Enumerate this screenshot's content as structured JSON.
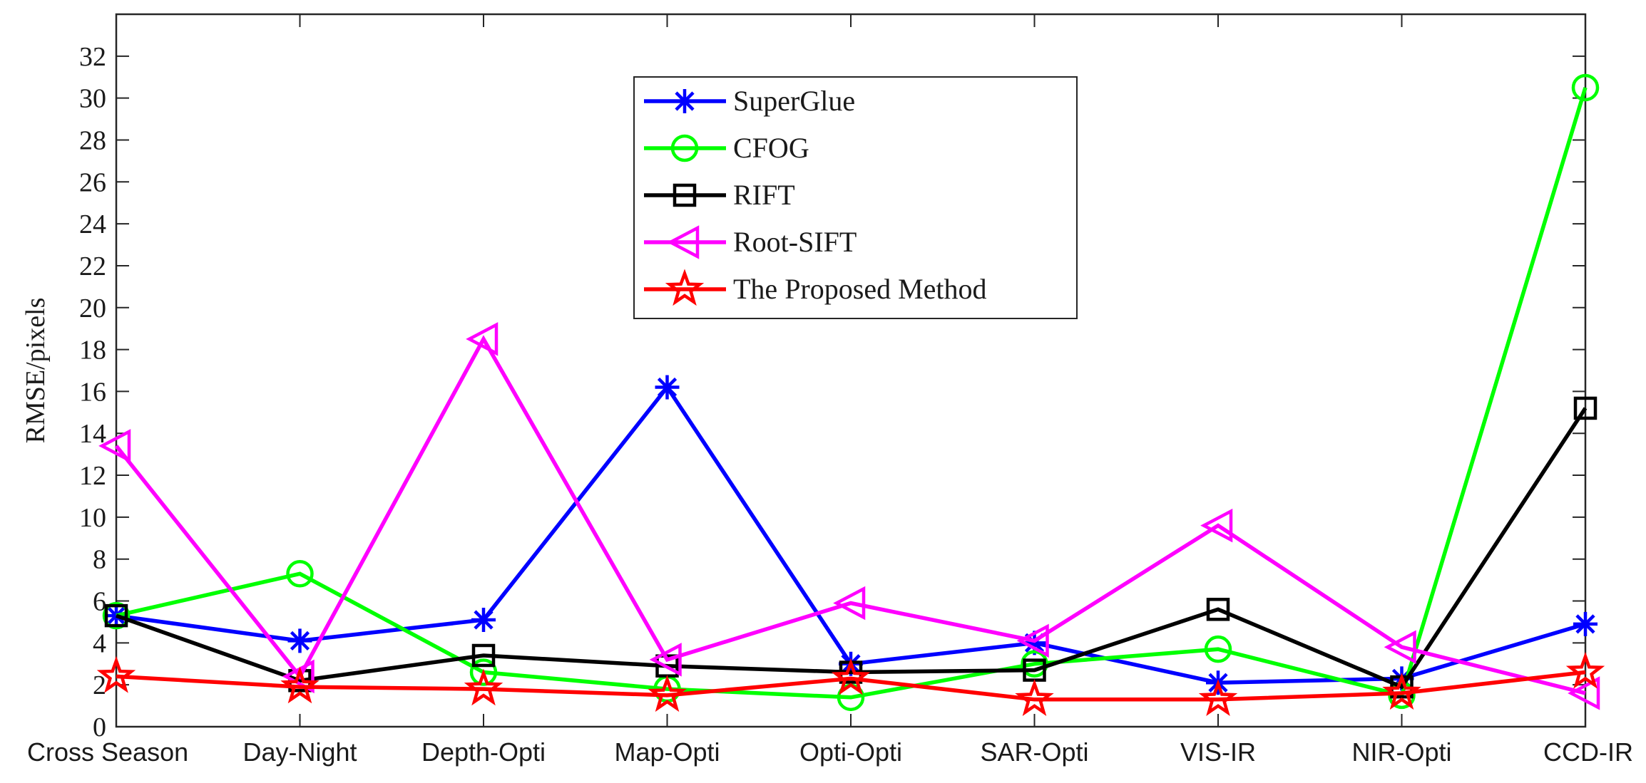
{
  "chart_data": {
    "type": "line",
    "title": "",
    "xlabel": "",
    "ylabel": "RMSE/pixels",
    "ylim": [
      0,
      34
    ],
    "yticks": [
      0,
      2,
      4,
      6,
      8,
      10,
      12,
      14,
      16,
      18,
      20,
      22,
      24,
      26,
      28,
      30,
      32
    ],
    "grid": false,
    "legend_position": "top-center",
    "categories": [
      "Cross Season",
      "Day-Night",
      "Depth-Opti",
      "Map-Opti",
      "Opti-Opti",
      "SAR-Opti",
      "VIS-IR",
      "NIR-Opti",
      "CCD-IR"
    ],
    "series": [
      {
        "name": "SuperGlue",
        "color": "#0000ff",
        "marker": "asterisk",
        "values": [
          5.3,
          4.1,
          5.1,
          16.2,
          3.0,
          4.0,
          2.1,
          2.3,
          4.9
        ]
      },
      {
        "name": "CFOG",
        "color": "#00ff00",
        "marker": "circle",
        "values": [
          5.3,
          7.3,
          2.6,
          1.8,
          1.4,
          3.0,
          3.7,
          1.5,
          30.5
        ]
      },
      {
        "name": "RIFT",
        "color": "#000000",
        "marker": "square",
        "values": [
          5.3,
          2.2,
          3.4,
          2.9,
          2.6,
          2.7,
          5.6,
          1.9,
          15.2
        ]
      },
      {
        "name": "Root-SIFT",
        "color": "#ff00ff",
        "marker": "triangle-left",
        "values": [
          13.4,
          2.4,
          18.5,
          3.2,
          5.9,
          4.1,
          9.6,
          3.8,
          1.6
        ]
      },
      {
        "name": "The Proposed Method",
        "color": "#ff0000",
        "marker": "star",
        "values": [
          2.4,
          1.9,
          1.8,
          1.5,
          2.3,
          1.3,
          1.3,
          1.6,
          2.6
        ]
      }
    ]
  }
}
